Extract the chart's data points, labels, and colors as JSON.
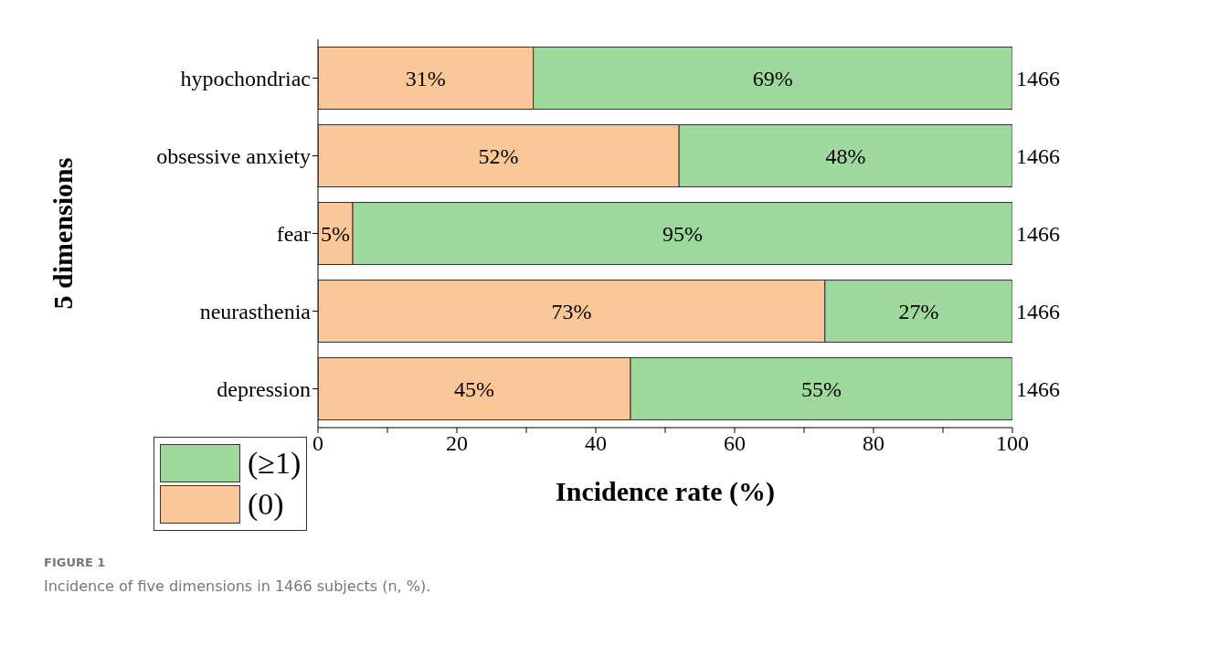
{
  "chart_data": {
    "type": "bar",
    "orientation": "horizontal",
    "stacked": true,
    "xlabel": "Incidence rate (%)",
    "ylabel": "5 dimensions",
    "categories": [
      "hypochondriac",
      "obsessive anxiety",
      "fear",
      "neurasthenia",
      "depression"
    ],
    "series": [
      {
        "name": "(0)",
        "color": "#fac898",
        "values": [
          31,
          52,
          5,
          73,
          45
        ],
        "value_labels": [
          "31%",
          "52%",
          "5%",
          "73%",
          "45%"
        ]
      },
      {
        "name": "(≥1)",
        "color": "#9fd89d",
        "values": [
          69,
          48,
          95,
          27,
          55
        ],
        "value_labels": [
          "69%",
          "48%",
          "95%",
          "27%",
          "55%"
        ]
      }
    ],
    "xlim": [
      0,
      100
    ],
    "xticks": [
      0,
      {
        "value": 10,
        "label": null
      },
      20,
      {
        "value": 30,
        "label": null
      },
      40,
      {
        "value": 50,
        "label": null
      },
      60,
      {
        "value": 70,
        "label": null
      },
      80,
      {
        "value": 90,
        "label": null
      },
      100
    ],
    "legend": "bottom left",
    "annotations": [
      "1466",
      "1466",
      "1466",
      "1466",
      "1466",
      "FIGURE 1",
      "Incidence of five dimensions in 1466 subjects (n, %)."
    ]
  }
}
